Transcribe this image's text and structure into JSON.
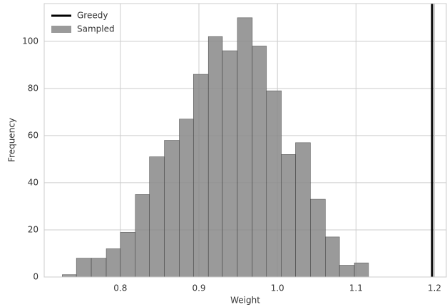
{
  "chart_data": {
    "type": "histogram",
    "xlabel": "Weight",
    "ylabel": "Frequency",
    "name": "Sampled",
    "color": "#888888",
    "bins": [
      0.726,
      0.744,
      0.763,
      0.782,
      0.8,
      0.819,
      0.837,
      0.856,
      0.875,
      0.893,
      0.912,
      0.93,
      0.949,
      0.968,
      0.986,
      1.005,
      1.023,
      1.042,
      1.061,
      1.079,
      1.098,
      1.116
    ],
    "values": [
      1,
      8,
      8,
      12,
      19,
      35,
      51,
      58,
      67,
      86,
      102,
      96,
      110,
      98,
      79,
      52,
      57,
      33,
      17,
      5,
      6
    ],
    "vlines": [
      {
        "name": "Greedy",
        "x": 1.197,
        "color": "#000000"
      }
    ],
    "xlim": [
      0.703,
      1.215
    ],
    "ylim": [
      0,
      116
    ],
    "xticks": [
      0.8,
      0.9,
      {
        "value": 1,
        "label": "1.0"
      },
      1.1,
      1.2
    ],
    "yticks": [
      0,
      20,
      40,
      60,
      80,
      100
    ],
    "grid": true,
    "legend": "upper left"
  }
}
